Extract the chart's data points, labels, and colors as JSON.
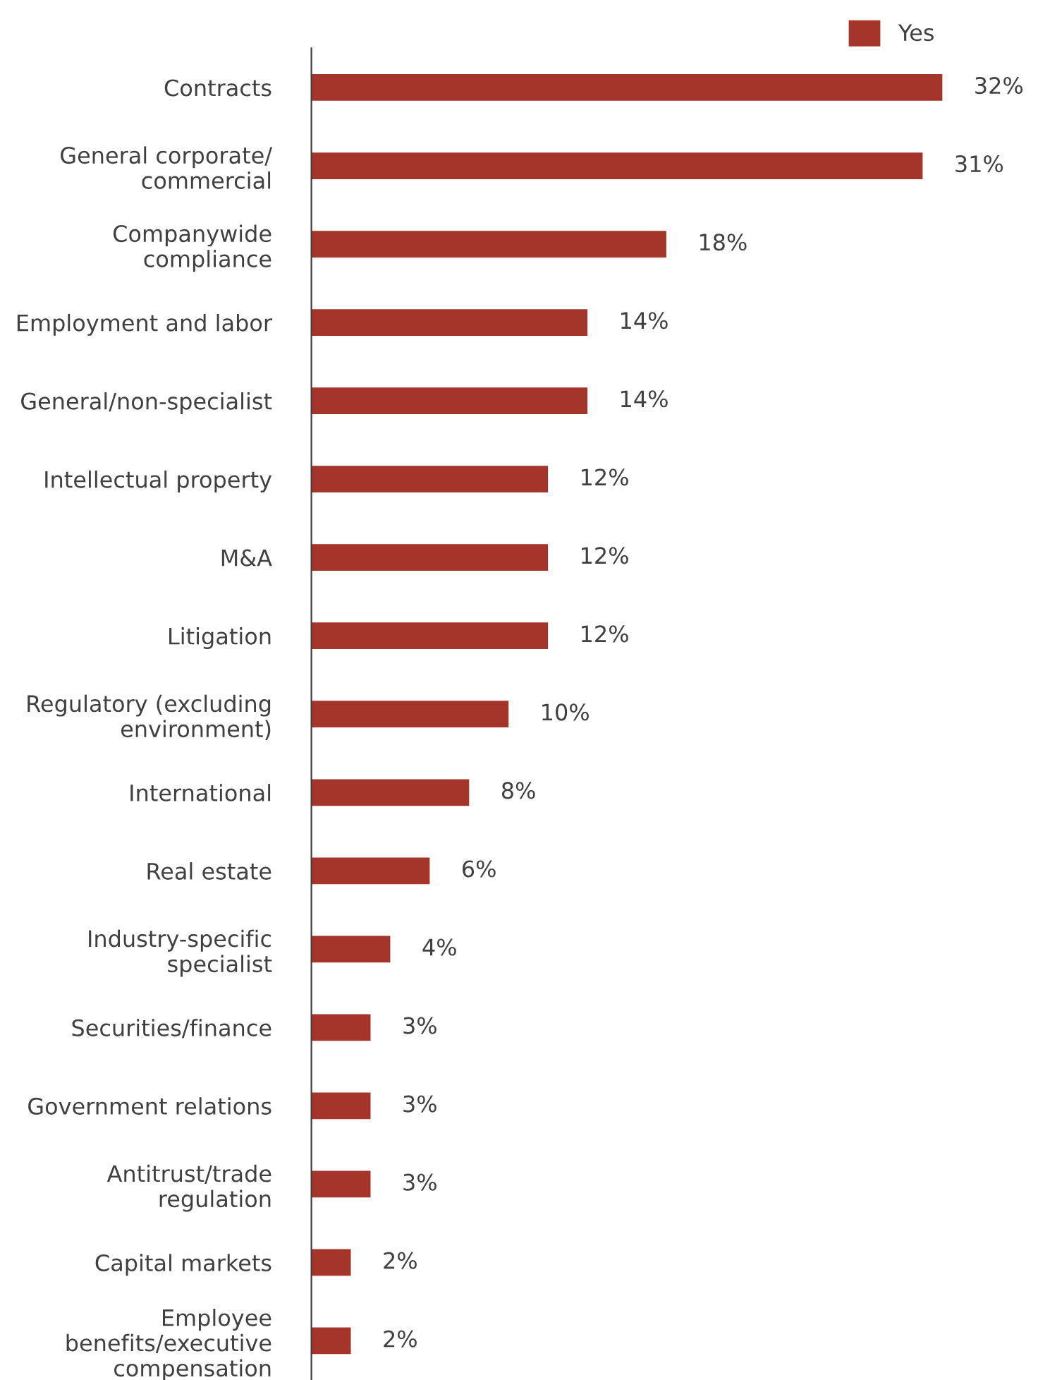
{
  "chart_data": {
    "type": "bar",
    "orientation": "horizontal",
    "legend": "top right",
    "tick_labels": "y",
    "categories": [
      "Contracts",
      "General corporate/\ncommercial",
      "Companywide\ncompliance",
      "Employment and labor",
      "General/non-specialist",
      "Intellectual property",
      "M&A",
      "Litigation",
      "Regulatory (excluding\nenvironment)",
      "International",
      "Real estate",
      "Industry-specific\nspecialist",
      "Securities/finance",
      "Government relations",
      "Antitrust/trade\nregulation",
      "Capital markets",
      "Employee\nbenefits/executive\ncompensation"
    ],
    "series": [
      {
        "name": "Yes",
        "color": "#a5342a",
        "values": [
          32,
          31,
          18,
          14,
          14,
          12,
          12,
          12,
          10,
          8,
          6,
          4,
          3,
          3,
          3,
          2,
          2
        ],
        "value_labels": [
          "32%",
          "31%",
          "18%",
          "14%",
          "14%",
          "12%",
          "12%",
          "12%",
          "10%",
          "8%",
          "6%",
          "4%",
          "3%",
          "3%",
          "3%",
          "2%",
          "2%"
        ]
      }
    ]
  }
}
